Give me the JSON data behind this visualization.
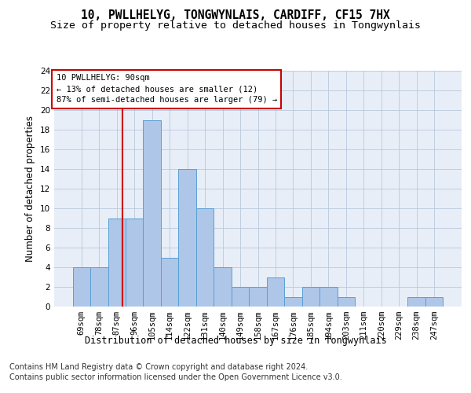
{
  "title": "10, PWLLHELYG, TONGWYNLAIS, CARDIFF, CF15 7HX",
  "subtitle": "Size of property relative to detached houses in Tongwynlais",
  "xlabel": "Distribution of detached houses by size in Tongwynlais",
  "ylabel": "Number of detached properties",
  "categories": [
    "69sqm",
    "78sqm",
    "87sqm",
    "96sqm",
    "105sqm",
    "114sqm",
    "122sqm",
    "131sqm",
    "140sqm",
    "149sqm",
    "158sqm",
    "167sqm",
    "176sqm",
    "185sqm",
    "194sqm",
    "203sqm",
    "211sqm",
    "220sqm",
    "229sqm",
    "238sqm",
    "247sqm"
  ],
  "values": [
    4,
    4,
    9,
    9,
    19,
    5,
    14,
    10,
    4,
    2,
    2,
    3,
    1,
    2,
    2,
    1,
    0,
    0,
    0,
    1,
    1
  ],
  "bar_color": "#aec6e8",
  "bar_edgecolor": "#5a9fd4",
  "bar_width": 1.0,
  "ylim": [
    0,
    24
  ],
  "yticks": [
    0,
    2,
    4,
    6,
    8,
    10,
    12,
    14,
    16,
    18,
    20,
    22,
    24
  ],
  "vline_color": "#cc0000",
  "annotation_text": "10 PWLLHELYG: 90sqm\n← 13% of detached houses are smaller (12)\n87% of semi-detached houses are larger (79) →",
  "annotation_box_color": "#ffffff",
  "annotation_box_edgecolor": "#cc0000",
  "footer1": "Contains HM Land Registry data © Crown copyright and database right 2024.",
  "footer2": "Contains public sector information licensed under the Open Government Licence v3.0.",
  "background_color": "#e8eef7",
  "title_fontsize": 10.5,
  "subtitle_fontsize": 9.5,
  "xlabel_fontsize": 8.5,
  "ylabel_fontsize": 8.5,
  "tick_fontsize": 7.5,
  "footer_fontsize": 7.0
}
